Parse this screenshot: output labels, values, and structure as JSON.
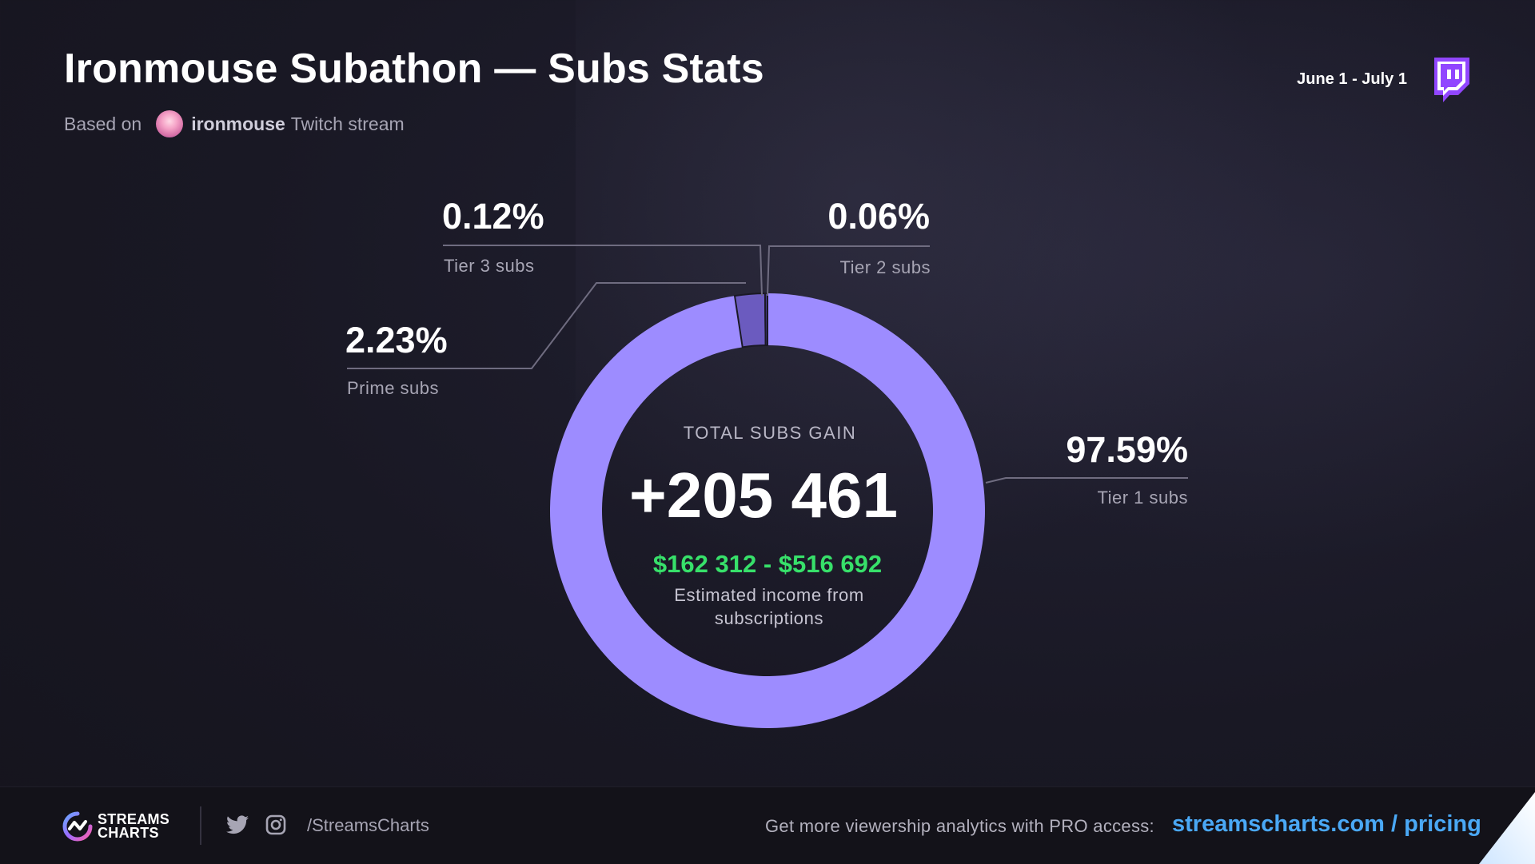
{
  "header": {
    "title": "Ironmouse Subathon — Subs Stats",
    "subtitle_prefix": "Based on",
    "streamer": "ironmouse",
    "subtitle_suffix": "Twitch stream",
    "date_range": "June 1 - July 1",
    "platform_icon": "twitch-icon"
  },
  "center": {
    "caption": "TOTAL SUBS GAIN",
    "total": "+205 461",
    "income": "$162 312 - $516 692",
    "note_line1": "Estimated income from",
    "note_line2": "subscriptions"
  },
  "chart_data": {
    "type": "pie",
    "style": "donut",
    "slices": [
      {
        "label": "Tier 1 subs",
        "value": 97.59,
        "pct_text": "97.59%",
        "color": "#9d8cff"
      },
      {
        "label": "Prime subs",
        "value": 2.23,
        "pct_text": "2.23%",
        "color": "#6b5bbf"
      },
      {
        "label": "Tier 3 subs",
        "value": 0.12,
        "pct_text": "0.12%",
        "color": "#4a3d8f"
      },
      {
        "label": "Tier 2 subs",
        "value": 0.06,
        "pct_text": "0.06%",
        "color": "#a99bff"
      }
    ],
    "total_subs": 205461
  },
  "footer": {
    "brand_line1": "STREAMS",
    "brand_line2": "CHARTS",
    "social_handle": "/StreamsCharts",
    "promo_text": "Get more viewership analytics with PRO access:",
    "promo_link": "streamscharts.com / pricing",
    "icons": [
      "streamscharts-logo-icon",
      "twitter-icon",
      "instagram-icon"
    ]
  },
  "colors": {
    "background": "#1a1925",
    "ring_primary": "#9d8cff",
    "income": "#37e06a",
    "link": "#4aa8f5",
    "twitch": "#9146ff"
  }
}
